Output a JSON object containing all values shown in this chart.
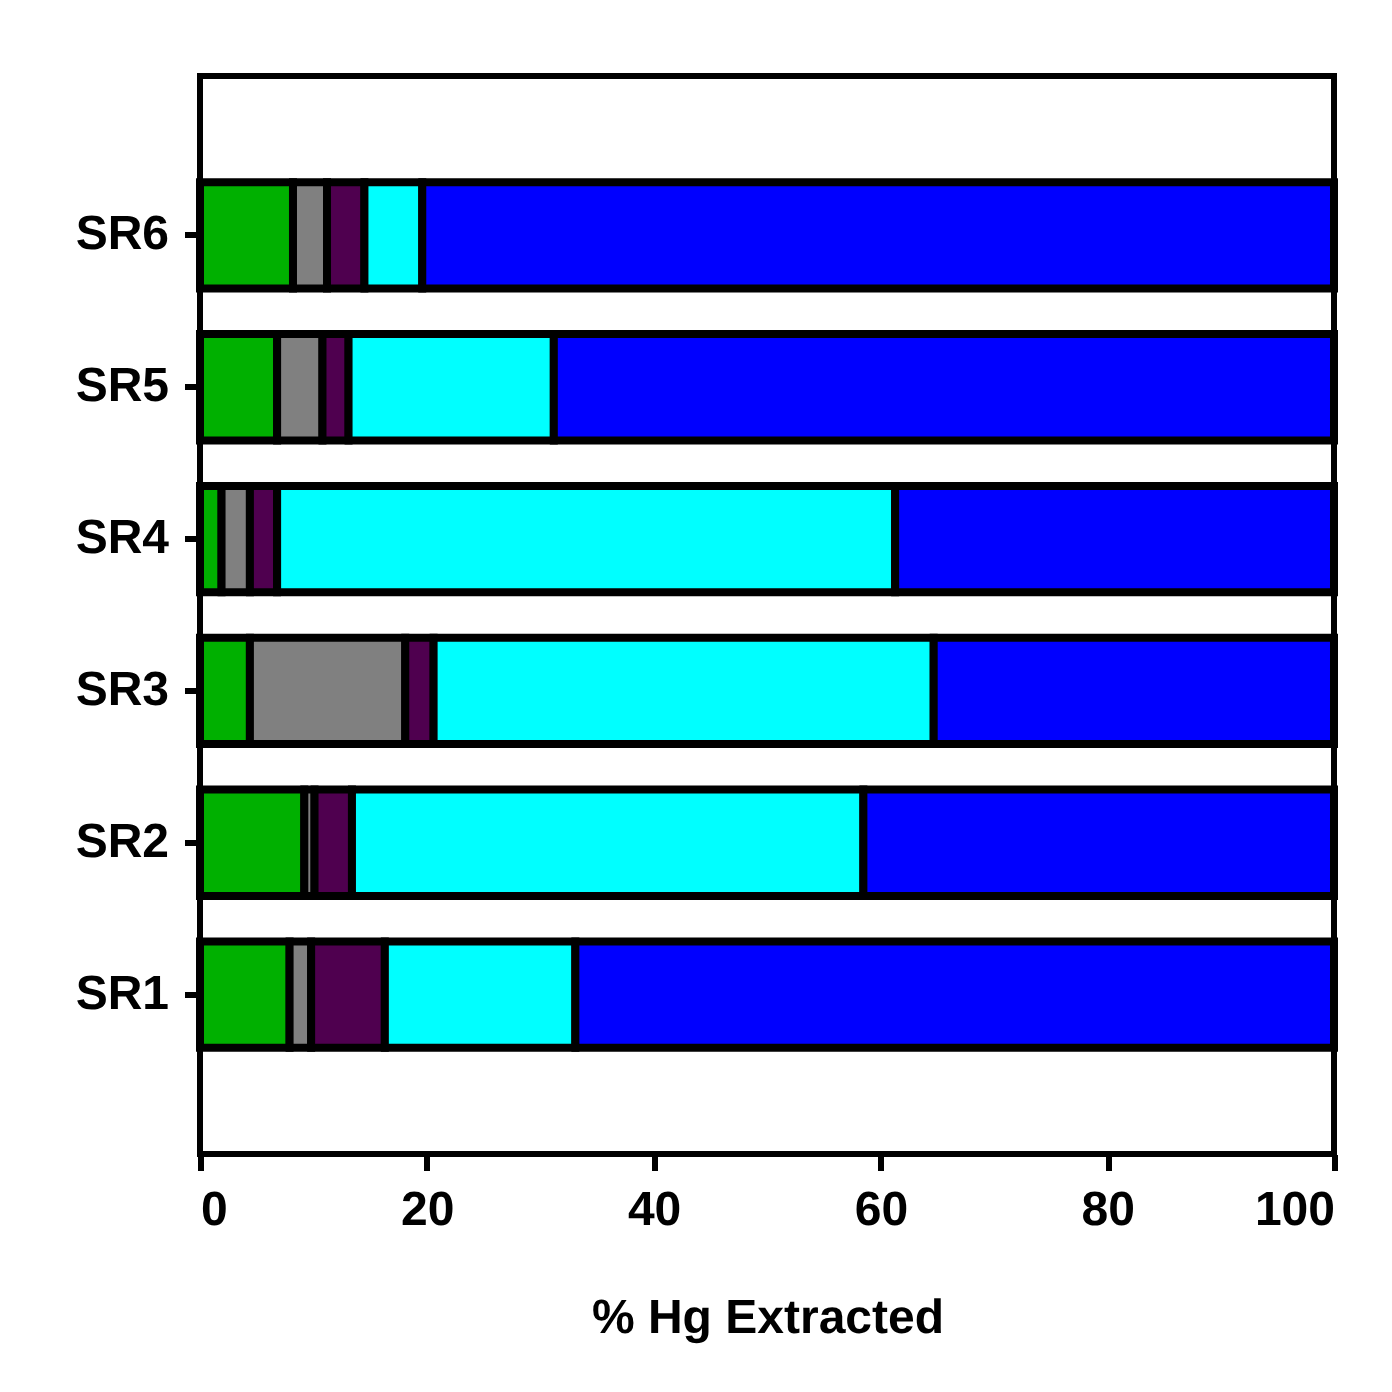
{
  "chart_data": {
    "type": "bar",
    "orientation": "horizontal",
    "stacked": true,
    "xlabel": "% Hg Extracted",
    "categories": [
      "SR6",
      "SR5",
      "SR4",
      "SR3",
      "SR2",
      "SR1"
    ],
    "xlim": [
      0,
      100
    ],
    "xticks": [
      0,
      20,
      40,
      60,
      80,
      100
    ],
    "series": [
      {
        "color": "#00b000",
        "values": [
          8.2,
          6.8,
          1.9,
          4.4,
          9.2,
          7.9
        ]
      },
      {
        "color": "#808080",
        "values": [
          3.0,
          4.0,
          2.5,
          13.7,
          0.9,
          1.9
        ]
      },
      {
        "color": "#4f004f",
        "values": [
          3.3,
          2.3,
          2.4,
          2.5,
          3.3,
          6.5
        ]
      },
      {
        "color": "#00ffff",
        "values": [
          5.1,
          18.1,
          54.5,
          44.1,
          45.1,
          16.8
        ]
      },
      {
        "color": "#0000ff",
        "values": [
          80.4,
          68.8,
          38.7,
          35.3,
          41.5,
          66.9
        ]
      }
    ]
  }
}
